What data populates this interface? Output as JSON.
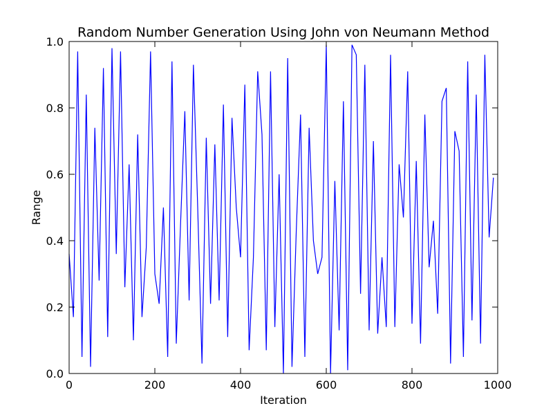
{
  "chart_data": {
    "type": "line",
    "title": "Random Number Generation Using John von Neumann Method",
    "xlabel": "Iteration",
    "ylabel": "Range",
    "xlim": [
      0,
      1000
    ],
    "ylim": [
      0.0,
      1.0
    ],
    "x_ticks": [
      "0",
      "200",
      "400",
      "600",
      "800",
      "1000"
    ],
    "y_ticks": [
      "0.0",
      "0.2",
      "0.4",
      "0.6",
      "0.8",
      "1.0"
    ],
    "grid": false,
    "legend": "none",
    "series": [
      {
        "color": "#0000ff",
        "x_start": 0,
        "x_step": 10,
        "values": [
          0.36,
          0.17,
          0.97,
          0.05,
          0.84,
          0.02,
          0.74,
          0.28,
          0.92,
          0.11,
          0.98,
          0.36,
          0.97,
          0.26,
          0.63,
          0.1,
          0.72,
          0.17,
          0.38,
          0.97,
          0.3,
          0.21,
          0.5,
          0.05,
          0.94,
          0.09,
          0.45,
          0.79,
          0.22,
          0.93,
          0.5,
          0.03,
          0.71,
          0.21,
          0.69,
          0.22,
          0.81,
          0.11,
          0.77,
          0.5,
          0.35,
          0.87,
          0.07,
          0.35,
          0.91,
          0.72,
          0.07,
          0.91,
          0.14,
          0.6,
          0.0,
          0.95,
          0.02,
          0.43,
          0.78,
          0.05,
          0.74,
          0.4,
          0.3,
          0.35,
          0.99,
          0.0,
          0.58,
          0.13,
          0.82,
          0.01,
          0.99,
          0.96,
          0.24,
          0.93,
          0.13,
          0.7,
          0.12,
          0.35,
          0.14,
          0.96,
          0.14,
          0.63,
          0.47,
          0.91,
          0.15,
          0.64,
          0.09,
          0.78,
          0.32,
          0.46,
          0.18,
          0.82,
          0.86,
          0.03,
          0.73,
          0.67,
          0.05,
          0.94,
          0.16,
          0.84,
          0.09,
          0.96,
          0.41,
          0.59
        ]
      }
    ]
  }
}
